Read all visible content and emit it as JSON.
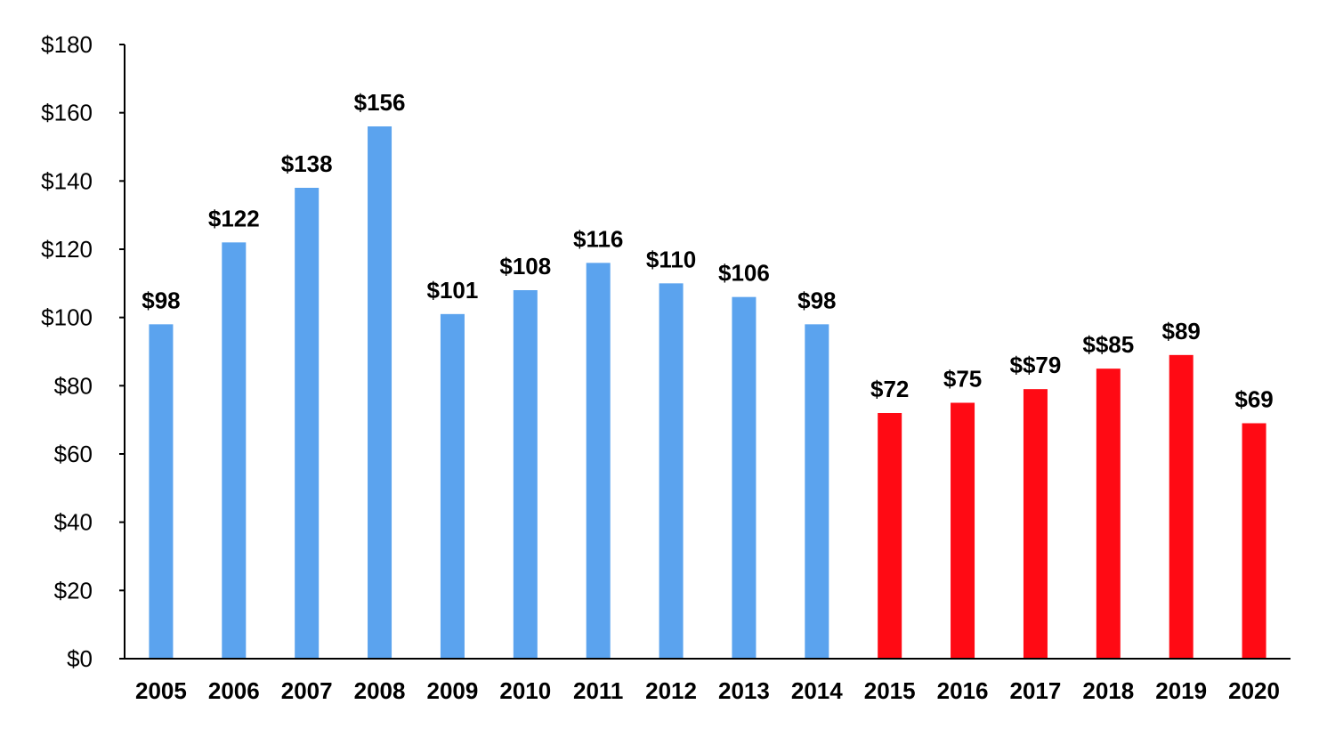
{
  "chart_data": {
    "type": "bar",
    "categories": [
      "2005",
      "2006",
      "2007",
      "2008",
      "2009",
      "2010",
      "2011",
      "2012",
      "2013",
      "2014",
      "2015",
      "2016",
      "2017",
      "2018",
      "2019",
      "2020"
    ],
    "values": [
      98,
      122,
      138,
      156,
      101,
      108,
      116,
      110,
      106,
      98,
      72,
      75,
      79,
      85,
      89,
      69
    ],
    "data_labels": [
      "$98",
      "$122",
      "$138",
      "$156",
      "$101",
      "$108",
      "$116",
      "$110",
      "$106",
      "$98",
      "$72",
      "$75",
      "$$79",
      "$$85",
      "$89",
      "$69"
    ],
    "bar_colors": [
      "#5BA3EE",
      "#5BA3EE",
      "#5BA3EE",
      "#5BA3EE",
      "#5BA3EE",
      "#5BA3EE",
      "#5BA3EE",
      "#5BA3EE",
      "#5BA3EE",
      "#5BA3EE",
      "#FF0A14",
      "#FF0A14",
      "#FF0A14",
      "#FF0A14",
      "#FF0A14",
      "#FF0A14"
    ],
    "y_ticks": [
      "$0",
      "$20",
      "$40",
      "$60",
      "$80",
      "$100",
      "$120",
      "$140",
      "$160",
      "$180"
    ],
    "y_tick_values": [
      0,
      20,
      40,
      60,
      80,
      100,
      120,
      140,
      160,
      180
    ],
    "ylim": [
      0,
      180
    ],
    "title": "",
    "xlabel": "",
    "ylabel": "",
    "grid": false,
    "legend": "none"
  }
}
